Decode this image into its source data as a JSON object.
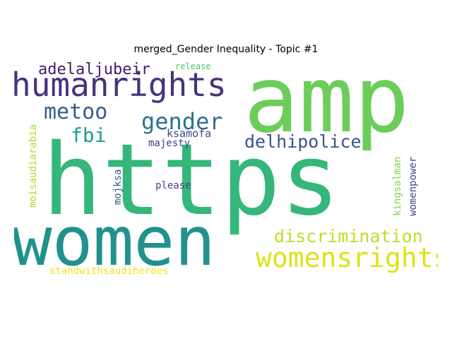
{
  "title": "merged_Gender Inequality - Topic #1",
  "words": [
    {
      "text": "amp",
      "color": "#6ccd5a"
    },
    {
      "text": "https",
      "color": "#35b779"
    },
    {
      "text": "women",
      "color": "#21918c"
    },
    {
      "text": "humanrights",
      "color": "#46327e"
    },
    {
      "text": "womensrights",
      "color": "#dde318"
    },
    {
      "text": "discrimination",
      "color": "#bddf26"
    },
    {
      "text": "delhipolice",
      "color": "#3b528b"
    },
    {
      "text": "gender",
      "color": "#2c728e"
    },
    {
      "text": "metoo",
      "color": "#365c8d"
    },
    {
      "text": "adelaljubeir",
      "color": "#48186a"
    },
    {
      "text": "fbi",
      "color": "#1f9e89"
    },
    {
      "text": "ksamofa",
      "color": "#3e4989"
    },
    {
      "text": "majesty",
      "color": "#424086"
    },
    {
      "text": "release",
      "color": "#4ac16d"
    },
    {
      "text": "please",
      "color": "#414487"
    },
    {
      "text": "mojksa",
      "color": "#39568c"
    },
    {
      "text": "moisaudiarabia",
      "color": "#addc30"
    },
    {
      "text": "kingsalman",
      "color": "#84d44b"
    },
    {
      "text": "womenpower",
      "color": "#3f4788"
    },
    {
      "text": "standwithsaudiheroes",
      "color": "#f1e51d"
    }
  ]
}
